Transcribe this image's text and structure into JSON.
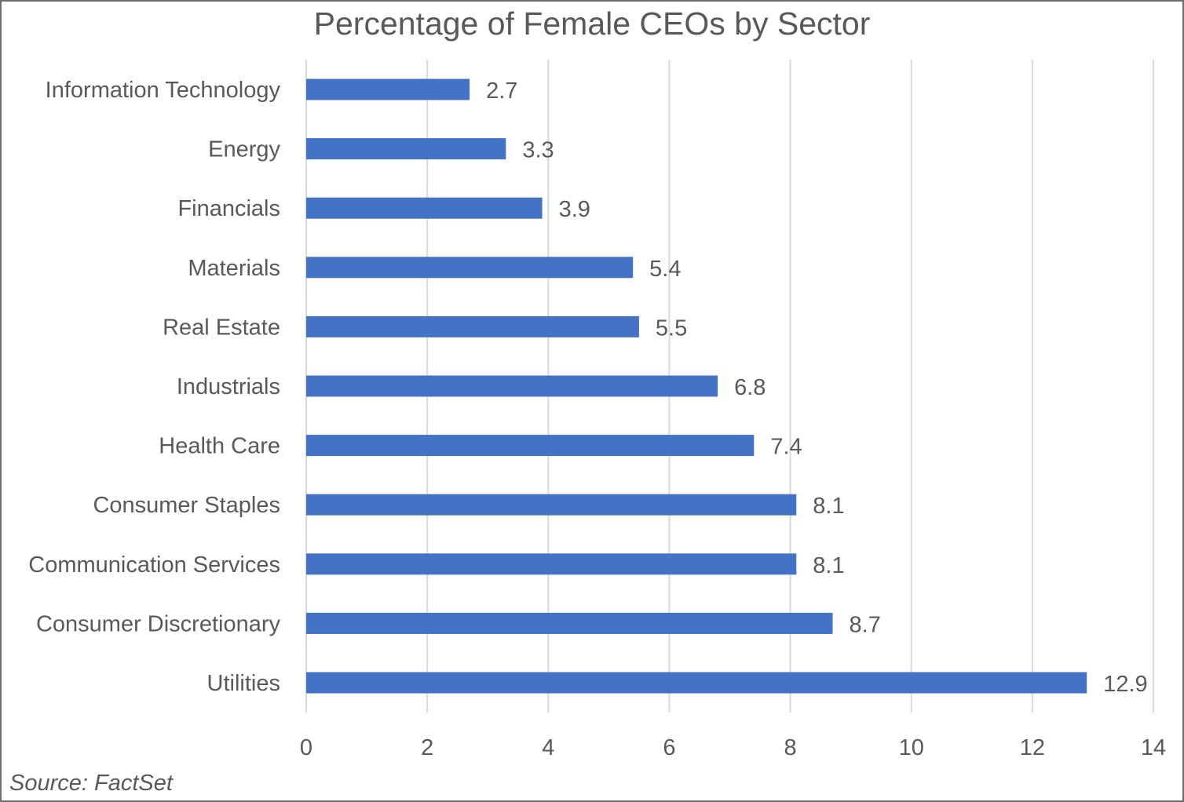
{
  "chart_data": {
    "type": "bar",
    "orientation": "horizontal",
    "title": "Percentage of Female CEOs by Sector",
    "xlabel": "",
    "ylabel": "",
    "categories": [
      "Information Technology",
      "Energy",
      "Financials",
      "Materials",
      "Real Estate",
      "Industrials",
      "Health Care",
      "Consumer Staples",
      "Communication Services",
      "Consumer Discretionary",
      "Utilities"
    ],
    "values": [
      2.7,
      3.3,
      3.9,
      5.4,
      5.5,
      6.8,
      7.4,
      8.1,
      8.1,
      8.7,
      12.9
    ],
    "value_labels": [
      "2.7",
      "3.3",
      "3.9",
      "5.4",
      "5.5",
      "6.8",
      "7.4",
      "8.1",
      "8.1",
      "8.7",
      "12.9"
    ],
    "xlim": [
      0,
      14
    ],
    "xticks": [
      0,
      2,
      4,
      6,
      8,
      10,
      12,
      14
    ],
    "grid": "vertical",
    "legend": "none",
    "bar_color": "#4472C4",
    "grid_color": "#D9D9D9"
  },
  "source": "Source: FactSet"
}
